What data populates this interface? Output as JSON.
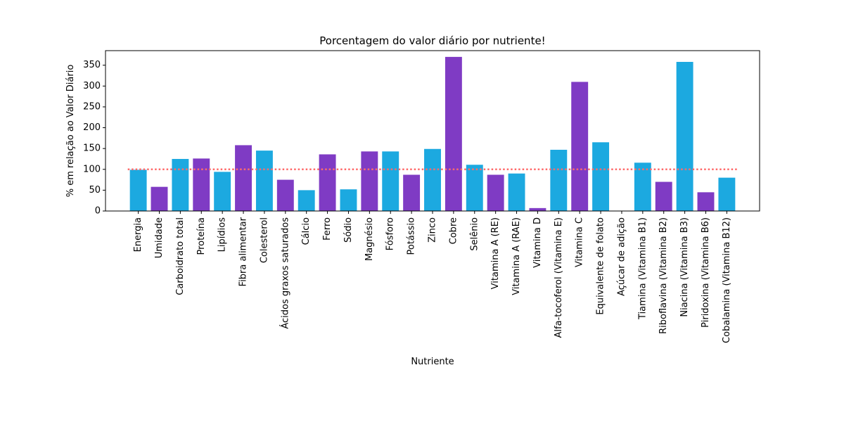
{
  "chart_data": {
    "type": "bar",
    "title": "Porcentagem do valor diário por nutriente!",
    "xlabel": "Nutriente",
    "ylabel": "% em relação ao Valor Diário",
    "ylim": [
      0,
      385
    ],
    "yticks": [
      0,
      50,
      100,
      150,
      200,
      250,
      300,
      350
    ],
    "reference_line": {
      "value": 100,
      "color": "#ff6b6b",
      "style": "dotted"
    },
    "colors": [
      "#1ca9e0",
      "#7f3bc4"
    ],
    "categories": [
      "Energia",
      "Umidade",
      "Carboidrato total",
      "Proteína",
      "Lipídios",
      "Fibra alimentar",
      "Colesterol",
      "Ácidos graxos saturados",
      "Cálcio",
      "Ferro",
      "Sódio",
      "Magnésio",
      "Fósforo",
      "Potássio",
      "Zinco",
      "Cobre",
      "Selênio",
      "Vitamina A (RE)",
      "Vitamina A (RAE)",
      "Vitamina D",
      "Alfa-tocoferol (Vitamina E)",
      "Vitamina C",
      "Equivalente de folato",
      "Açúcar de adição",
      "Tiamina (Vitamina B1)",
      "Riboflavina (Vitamina B2)",
      "Niacina (Vitamina B3)",
      "Piridoxina (Vitamina B6)",
      "Cobalamina (Vitamina B12)"
    ],
    "values": [
      99,
      58,
      125,
      126,
      94,
      158,
      145,
      75,
      50,
      136,
      52,
      143,
      143,
      87,
      149,
      370,
      111,
      87,
      90,
      7,
      147,
      310,
      165,
      0,
      116,
      70,
      358,
      45,
      80
    ],
    "grid": false
  }
}
